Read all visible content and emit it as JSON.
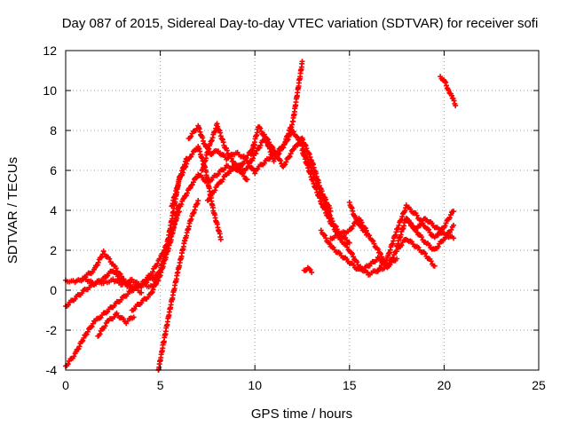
{
  "chart_data": {
    "type": "scatter",
    "title": "Day 087 of 2015, Sidereal Day-to-day VTEC variation (SDTVAR) for receiver sofi",
    "xlabel": "GPS time / hours",
    "ylabel": "SDTVAR / TECUs",
    "xlim": [
      0,
      25
    ],
    "ylim": [
      -4,
      12
    ],
    "xticks": [
      0,
      5,
      10,
      15,
      20,
      25
    ],
    "yticks": [
      -4,
      -2,
      0,
      2,
      4,
      6,
      8,
      10,
      12
    ],
    "grid": true,
    "marker": "plus",
    "color": "#ff0000",
    "series": [
      {
        "x": [
          0.0,
          0.5,
          1.0,
          1.5,
          2.0,
          2.5,
          3.0,
          3.5,
          4.0,
          4.5,
          5.0
        ],
        "y": [
          0.5,
          0.4,
          0.6,
          0.3,
          0.4,
          0.5,
          0.3,
          0.5,
          0.2,
          0.6,
          0.8
        ]
      },
      {
        "x": [
          0.0,
          0.5,
          1.0,
          1.5,
          2.0,
          2.5,
          3.0,
          3.5,
          4.0,
          4.5,
          4.9
        ],
        "y": [
          -0.8,
          -0.4,
          0.0,
          0.3,
          0.6,
          1.0,
          0.4,
          0.1,
          0.3,
          0.2,
          0.5
        ]
      },
      {
        "x": [
          0.0,
          0.5,
          1.0,
          1.5,
          2.0,
          2.5,
          3.0,
          3.5,
          4.0,
          4.5,
          5.0,
          5.5,
          6.0
        ],
        "y": [
          -3.8,
          -3.2,
          -2.3,
          -1.6,
          -1.2,
          -0.8,
          -0.4,
          0.0,
          0.3,
          0.8,
          1.6,
          2.6,
          4.0
        ]
      },
      {
        "x": [
          0.9,
          1.5,
          2.0,
          2.5,
          3.0,
          3.5,
          4.0
        ],
        "y": [
          0.6,
          1.0,
          1.9,
          1.3,
          0.6,
          0.2,
          -0.1
        ]
      },
      {
        "x": [
          1.7,
          2.2,
          2.7,
          3.2,
          3.6
        ],
        "y": [
          -2.3,
          -1.6,
          -1.2,
          -1.6,
          -1.3
        ]
      },
      {
        "x": [
          3.5,
          4.0,
          4.5,
          5.0,
          5.5,
          6.0
        ],
        "y": [
          -1.0,
          -0.6,
          -0.2,
          0.8,
          2.3,
          4.3
        ]
      },
      {
        "x": [
          4.7,
          5.0,
          5.3,
          5.7,
          6.0,
          6.4
        ],
        "y": [
          0.5,
          1.0,
          2.0,
          4.0,
          5.6,
          6.6
        ]
      },
      {
        "x": [
          4.9,
          5.2,
          5.5,
          5.9,
          6.3,
          6.6,
          7.0
        ],
        "y": [
          -4.0,
          -2.5,
          -1.0,
          0.8,
          2.5,
          3.5,
          4.5
        ]
      },
      {
        "x": [
          5.6,
          6.0,
          6.5,
          7.0,
          7.4,
          7.8,
          8.2
        ],
        "y": [
          4.2,
          5.5,
          6.6,
          7.2,
          6.0,
          4.0,
          2.6
        ]
      },
      {
        "x": [
          5.8,
          6.2,
          6.6,
          7.0,
          7.5,
          8.0,
          8.5,
          9.0,
          9.5,
          10.0
        ],
        "y": [
          3.8,
          4.5,
          5.2,
          5.8,
          5.4,
          5.8,
          6.2,
          6.0,
          6.5,
          5.9
        ]
      },
      {
        "x": [
          6.5,
          7.0,
          7.3,
          7.7,
          8.0,
          8.5,
          9.0,
          9.5,
          10.0
        ],
        "y": [
          7.6,
          8.2,
          7.4,
          6.8,
          7.0,
          6.6,
          6.9,
          6.6,
          7.2
        ]
      },
      {
        "x": [
          7.2,
          7.6,
          8.0,
          8.4,
          8.8,
          9.2,
          9.6
        ],
        "y": [
          6.0,
          7.2,
          8.3,
          7.2,
          6.5,
          6.0,
          5.5
        ]
      },
      {
        "x": [
          7.5,
          8.0,
          8.5,
          9.0,
          9.5,
          10.0,
          10.5,
          11.0
        ],
        "y": [
          4.5,
          5.2,
          5.8,
          6.3,
          6.0,
          6.8,
          7.6,
          7.0
        ]
      },
      {
        "x": [
          9.8,
          10.2,
          10.6,
          11.0,
          11.5,
          12.0,
          12.5
        ],
        "y": [
          6.8,
          8.2,
          7.5,
          6.5,
          7.2,
          8.4,
          11.4
        ]
      },
      {
        "x": [
          10.0,
          10.5,
          11.0,
          11.5,
          12.0,
          12.5,
          13.0,
          13.5,
          14.0,
          14.5,
          15.0
        ],
        "y": [
          6.0,
          6.4,
          6.8,
          7.2,
          8.0,
          7.2,
          6.0,
          4.8,
          3.6,
          2.8,
          2.4
        ]
      },
      {
        "x": [
          10.5,
          11.0,
          11.5,
          12.0,
          12.5,
          13.0,
          13.5,
          14.0
        ],
        "y": [
          7.8,
          7.0,
          6.2,
          7.0,
          7.6,
          6.5,
          5.0,
          4.0
        ]
      },
      {
        "x": [
          12.5,
          13.0,
          13.5,
          14.0,
          14.5,
          15.0,
          15.5,
          16.0,
          16.5,
          17.0,
          17.5
        ],
        "y": [
          7.0,
          5.6,
          4.4,
          3.4,
          2.6,
          2.0,
          1.2,
          0.8,
          1.0,
          1.2,
          1.6
        ]
      },
      {
        "x": [
          12.6,
          12.8,
          13.0
        ],
        "y": [
          1.0,
          1.1,
          0.9
        ]
      },
      {
        "x": [
          13.5,
          14.0,
          14.5,
          15.0,
          15.5,
          16.0,
          16.5,
          17.0,
          17.5,
          18.0,
          18.5,
          19.0,
          19.5
        ],
        "y": [
          3.0,
          2.2,
          1.8,
          1.4,
          1.0,
          1.2,
          1.6,
          1.2,
          2.0,
          2.6,
          2.2,
          1.8,
          1.2
        ]
      },
      {
        "x": [
          14.0,
          14.5,
          15.0,
          15.5,
          16.0,
          16.5,
          17.0
        ],
        "y": [
          2.6,
          2.8,
          3.0,
          3.6,
          2.8,
          2.0,
          1.2
        ]
      },
      {
        "x": [
          15.0,
          15.3,
          15.6,
          15.9
        ],
        "y": [
          4.4,
          3.6,
          3.2,
          2.8
        ]
      },
      {
        "x": [
          16.5,
          17.0,
          17.5,
          18.0,
          18.5,
          19.0,
          19.5,
          20.0,
          20.5
        ],
        "y": [
          1.0,
          1.6,
          3.0,
          4.2,
          3.8,
          3.2,
          2.6,
          3.2,
          4.0
        ]
      },
      {
        "x": [
          17.5,
          18.0,
          18.5,
          19.0,
          19.5,
          20.0,
          20.5
        ],
        "y": [
          2.2,
          3.6,
          3.0,
          2.4,
          2.0,
          2.6,
          3.2
        ]
      },
      {
        "x": [
          18.0,
          18.5,
          19.0,
          19.5,
          20.0,
          20.5
        ],
        "y": [
          3.6,
          3.0,
          3.6,
          3.2,
          2.8,
          2.6
        ]
      },
      {
        "x": [
          19.8,
          20.0,
          20.2,
          20.4,
          20.6
        ],
        "y": [
          10.7,
          10.5,
          10.1,
          9.7,
          9.3
        ]
      }
    ]
  }
}
